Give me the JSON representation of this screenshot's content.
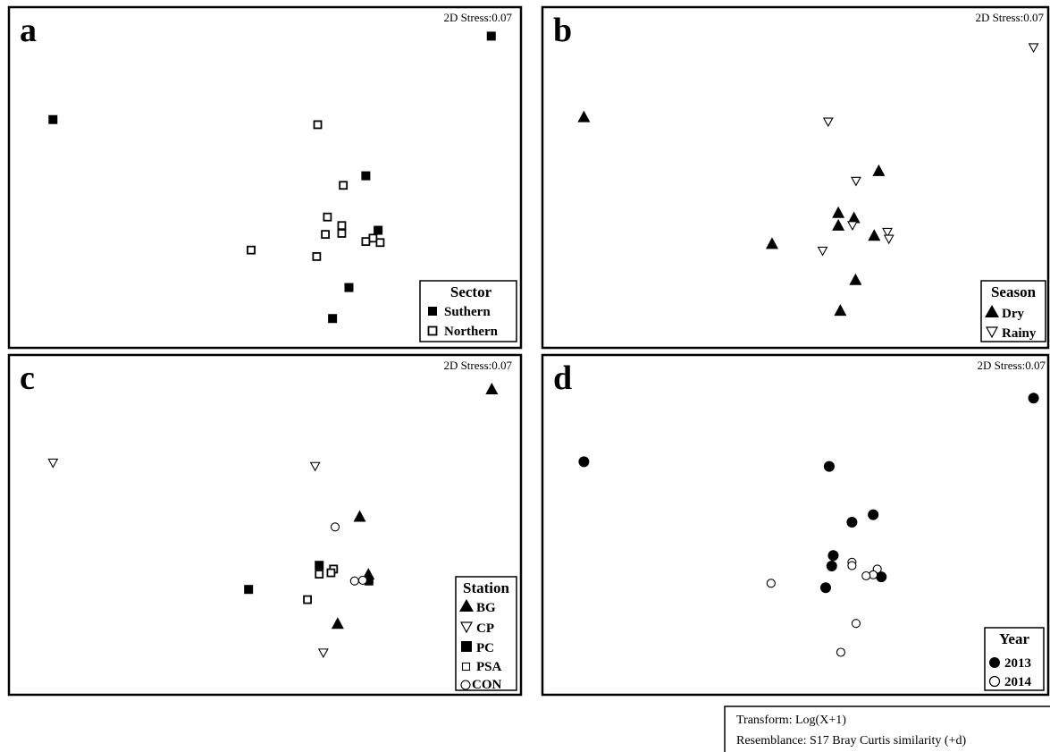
{
  "chart_data": [
    {
      "type": "scatter",
      "panel_letter": "a",
      "stress_label": "2D Stress:0.07",
      "legend": {
        "title": "Sector",
        "placement": "bottom-right",
        "entries": [
          {
            "label": "Suthern",
            "marker": "square-filled"
          },
          {
            "label": "Northern",
            "marker": "square-open"
          }
        ]
      },
      "series": [
        {
          "name": "Suthern",
          "marker": "square-filled",
          "points": [
            [
              0.942,
              0.085
            ],
            [
              0.086,
              0.33
            ],
            [
              0.697,
              0.495
            ],
            [
              0.721,
              0.655
            ],
            [
              0.664,
              0.823
            ],
            [
              0.632,
              0.914
            ]
          ]
        },
        {
          "name": "Northern",
          "marker": "square-open",
          "points": [
            [
              0.603,
              0.345
            ],
            [
              0.653,
              0.523
            ],
            [
              0.622,
              0.616
            ],
            [
              0.65,
              0.641
            ],
            [
              0.65,
              0.664
            ],
            [
              0.618,
              0.667
            ],
            [
              0.601,
              0.732
            ],
            [
              0.473,
              0.713
            ],
            [
              0.697,
              0.688
            ],
            [
              0.711,
              0.678
            ],
            [
              0.725,
              0.691
            ]
          ]
        }
      ]
    },
    {
      "type": "scatter",
      "panel_letter": "b",
      "stress_label": "2D Stress:0.07",
      "legend": {
        "title": "Season",
        "placement": "bottom-right",
        "entries": [
          {
            "label": "Dry",
            "marker": "triangle-up-filled"
          },
          {
            "label": "Rainy",
            "marker": "triangle-down-open"
          }
        ]
      },
      "series": [
        {
          "name": "Dry",
          "marker": "triangle-up-filled",
          "points": [
            [
              0.082,
              0.322
            ],
            [
              0.665,
              0.48
            ],
            [
              0.585,
              0.603
            ],
            [
              0.616,
              0.618
            ],
            [
              0.585,
              0.64
            ],
            [
              0.656,
              0.67
            ],
            [
              0.454,
              0.694
            ],
            [
              0.619,
              0.8
            ],
            [
              0.589,
              0.89
            ]
          ]
        },
        {
          "name": "Rainy",
          "marker": "triangle-down-open",
          "points": [
            [
              0.971,
              0.118
            ],
            [
              0.565,
              0.336
            ],
            [
              0.62,
              0.51
            ],
            [
              0.613,
              0.64
            ],
            [
              0.682,
              0.66
            ],
            [
              0.685,
              0.68
            ],
            [
              0.554,
              0.715
            ]
          ]
        }
      ]
    },
    {
      "type": "scatter",
      "panel_letter": "c",
      "stress_label": "2D Stress:0.07",
      "legend": {
        "title": "Station",
        "placement": "bottom-right",
        "entries": [
          {
            "label": "BG",
            "marker": "triangle-up-filled"
          },
          {
            "label": "CP",
            "marker": "triangle-down-open"
          },
          {
            "label": "PC",
            "marker": "square-filled"
          },
          {
            "label": "PSA",
            "marker": "square-open"
          },
          {
            "label": "CON",
            "marker": "circle-open"
          }
        ]
      },
      "series": [
        {
          "name": "BG",
          "marker": "triangle-up-filled",
          "points": [
            [
              0.943,
              0.1
            ],
            [
              0.685,
              0.475
            ],
            [
              0.702,
              0.645
            ],
            [
              0.642,
              0.79
            ]
          ]
        },
        {
          "name": "CP",
          "marker": "triangle-down-open",
          "points": [
            [
              0.086,
              0.317
            ],
            [
              0.598,
              0.327
            ],
            [
              0.614,
              0.876
            ]
          ]
        },
        {
          "name": "PC",
          "marker": "square-filled",
          "points": [
            [
              0.606,
              0.619
            ],
            [
              0.703,
              0.665
            ],
            [
              0.468,
              0.69
            ]
          ]
        },
        {
          "name": "PSA",
          "marker": "square-open",
          "points": [
            [
              0.634,
              0.63
            ],
            [
              0.629,
              0.641
            ],
            [
              0.606,
              0.645
            ],
            [
              0.583,
              0.72
            ]
          ]
        },
        {
          "name": "CON",
          "marker": "circle-open",
          "points": [
            [
              0.637,
              0.506
            ],
            [
              0.675,
              0.665
            ],
            [
              0.691,
              0.663
            ]
          ]
        }
      ]
    },
    {
      "type": "scatter",
      "panel_letter": "d",
      "stress_label": "2D Stress:0.07",
      "legend": {
        "title": "Year",
        "placement": "bottom-right",
        "entries": [
          {
            "label": "2013",
            "marker": "circle-filled"
          },
          {
            "label": "2014",
            "marker": "circle-open"
          }
        ]
      },
      "series": [
        {
          "name": "2013",
          "marker": "circle-filled",
          "points": [
            [
              0.971,
              0.127
            ],
            [
              0.082,
              0.314
            ],
            [
              0.567,
              0.328
            ],
            [
              0.654,
              0.47
            ],
            [
              0.612,
              0.492
            ],
            [
              0.575,
              0.59
            ],
            [
              0.572,
              0.621
            ],
            [
              0.67,
              0.653
            ],
            [
              0.56,
              0.685
            ]
          ]
        },
        {
          "name": "2014",
          "marker": "circle-open",
          "points": [
            [
              0.612,
              0.61
            ],
            [
              0.612,
              0.62
            ],
            [
              0.662,
              0.63
            ],
            [
              0.654,
              0.647
            ],
            [
              0.64,
              0.65
            ],
            [
              0.452,
              0.672
            ],
            [
              0.62,
              0.79
            ],
            [
              0.59,
              0.875
            ]
          ]
        }
      ]
    }
  ],
  "notes": {
    "transform": "Transform: Log(X+1)",
    "resemblance": "Resemblance: S17 Bray Curtis similarity (+d)"
  }
}
